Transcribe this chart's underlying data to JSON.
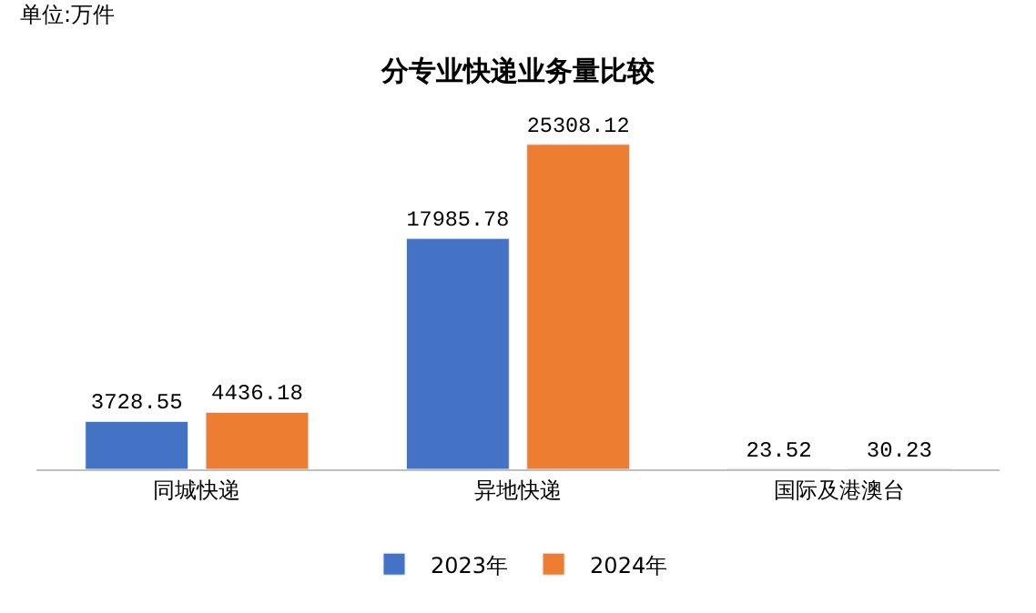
{
  "chart_data": {
    "type": "bar",
    "title": "分专业快递业务量比较",
    "annotations": [
      "单位:万件"
    ],
    "categories": [
      "同城快递",
      "异地快递",
      "国际及港澳台"
    ],
    "series": [
      {
        "name": "2023年",
        "color": "#4472c4",
        "values": [
          3728.55,
          17985.78,
          23.52
        ]
      },
      {
        "name": "2024年",
        "color": "#ed7d31",
        "values": [
          4436.18,
          25308.12,
          30.23
        ]
      }
    ],
    "data_labels": true,
    "legend": "bottom"
  }
}
